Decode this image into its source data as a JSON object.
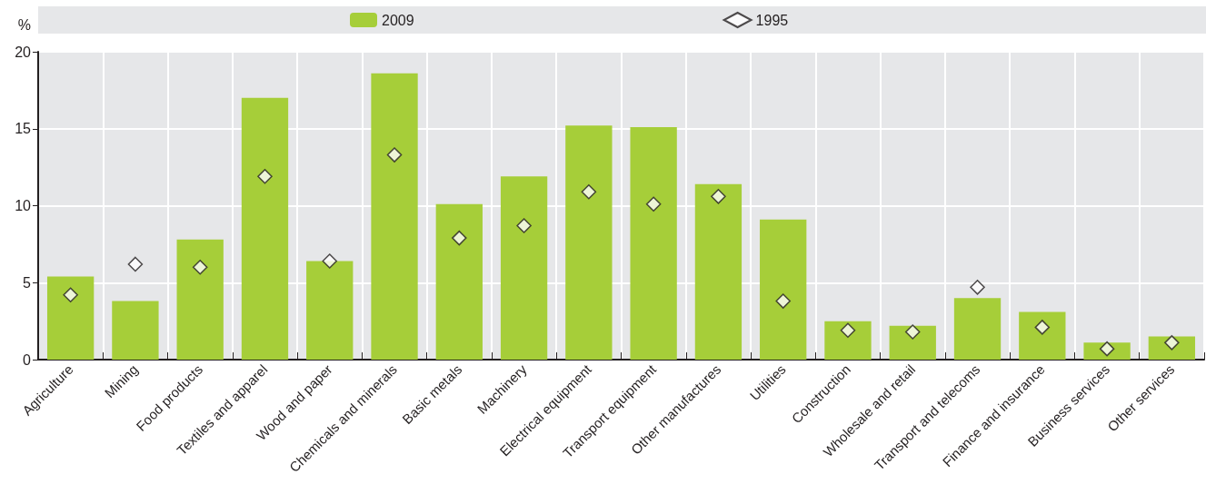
{
  "chart_data": {
    "type": "bar",
    "ylabel": "%",
    "categories": [
      "Agriculture",
      "Mining",
      "Food products",
      "Textiles and apparel",
      "Wood and paper",
      "Chemicals and minerals",
      "Basic metals",
      "Machinery",
      "Electrical equipment",
      "Transport equipment",
      "Other manufactures",
      "Utilities",
      "Construction",
      "Wholesale and retail",
      "Transport and telecoms",
      "Finance and insurance",
      "Business services",
      "Other services"
    ],
    "series": [
      {
        "name": "2009",
        "color": "#a6ce39",
        "values": [
          5.4,
          3.8,
          7.8,
          17.0,
          6.4,
          18.6,
          10.1,
          11.9,
          15.2,
          15.1,
          11.4,
          9.1,
          2.5,
          2.2,
          4.0,
          3.1,
          1.1,
          1.5
        ]
      },
      {
        "name": "1995",
        "type": "scatter",
        "marker": "diamond",
        "color": "#ffffff",
        "values": [
          4.2,
          6.2,
          6.0,
          11.9,
          6.4,
          13.3,
          7.9,
          8.7,
          10.9,
          10.1,
          10.6,
          3.8,
          1.9,
          1.8,
          4.7,
          2.1,
          0.7,
          1.1
        ]
      }
    ],
    "ylim": [
      0,
      20
    ],
    "yticks": [
      0,
      5,
      10,
      15,
      20
    ],
    "grid": true,
    "legend": "top"
  }
}
